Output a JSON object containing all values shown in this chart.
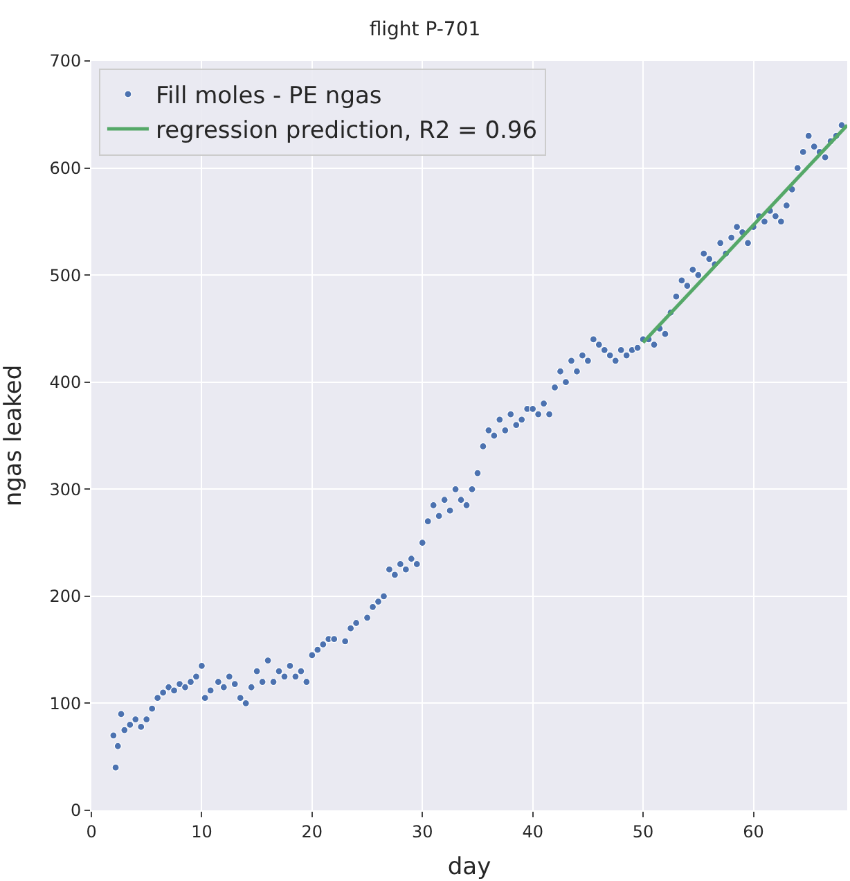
{
  "chart_data": {
    "type": "line",
    "title": "flight P-701",
    "xlabel": "day",
    "ylabel": "ngas leaked",
    "xlim": [
      0,
      68.5
    ],
    "ylim": [
      0,
      700
    ],
    "xticks": [
      0,
      10,
      20,
      30,
      40,
      50,
      60
    ],
    "yticks": [
      0,
      100,
      200,
      300,
      400,
      500,
      600,
      700
    ],
    "grid": true,
    "legend": "top left",
    "series": [
      {
        "name": "Fill moles - PE ngas",
        "type": "scatter",
        "marker": "circle",
        "color": "#4c72b0",
        "x": [
          2,
          2.2,
          2.4,
          2.7,
          3,
          3.5,
          4,
          4.5,
          5,
          5.5,
          6,
          6.5,
          7,
          7.5,
          8,
          8.5,
          9,
          9.5,
          10,
          10.3,
          10.8,
          11.5,
          12,
          12.5,
          13,
          13.5,
          14,
          14.5,
          15,
          15.5,
          16,
          16.5,
          17,
          17.5,
          18,
          18.5,
          19,
          19.5,
          20,
          20.5,
          21,
          21.5,
          22,
          23,
          23.5,
          24,
          25,
          25.5,
          26,
          26.5,
          27,
          27.5,
          28,
          28.5,
          29,
          29.5,
          30,
          30.5,
          31,
          31.5,
          32,
          32.5,
          33,
          33.5,
          34,
          34.5,
          35,
          35.5,
          36,
          36.5,
          37,
          37.5,
          38,
          38.5,
          39,
          39.5,
          40,
          40.5,
          41,
          41.5,
          42,
          42.5,
          43,
          43.5,
          44,
          44.5,
          45,
          45.5,
          46,
          46.5,
          47,
          47.5,
          48,
          48.5,
          49,
          49.5,
          50,
          50.5,
          51,
          51.5,
          52,
          52.5,
          53,
          53.5,
          54,
          54.5,
          55,
          55.5,
          56,
          56.5,
          57,
          57.5,
          58,
          58.5,
          59,
          59.5,
          60,
          60.5,
          61,
          61.5,
          62,
          62.5,
          63,
          63.5,
          64,
          64.5,
          65,
          65.5,
          66,
          66.5,
          67,
          67.5,
          68
        ],
        "values": [
          70,
          40,
          60,
          90,
          75,
          80,
          85,
          78,
          85,
          95,
          105,
          110,
          115,
          112,
          118,
          115,
          120,
          125,
          135,
          105,
          112,
          120,
          115,
          125,
          118,
          105,
          100,
          115,
          130,
          120,
          140,
          120,
          130,
          125,
          135,
          125,
          130,
          120,
          145,
          150,
          155,
          160,
          160,
          158,
          170,
          175,
          180,
          190,
          195,
          200,
          225,
          220,
          230,
          225,
          235,
          230,
          250,
          270,
          285,
          275,
          290,
          280,
          300,
          290,
          285,
          300,
          315,
          340,
          355,
          350,
          365,
          355,
          370,
          360,
          365,
          375,
          375,
          370,
          380,
          370,
          395,
          410,
          400,
          420,
          410,
          425,
          420,
          440,
          435,
          430,
          425,
          420,
          430,
          425,
          430,
          432,
          440,
          440,
          435,
          450,
          445,
          465,
          480,
          495,
          490,
          505,
          500,
          520,
          515,
          510,
          530,
          520,
          535,
          545,
          540,
          530,
          545,
          555,
          550,
          560,
          555,
          550,
          565,
          580,
          600,
          615,
          630,
          620,
          615,
          610,
          625,
          630,
          640
        ]
      },
      {
        "name": "regression prediction, R2 = 0.96",
        "line_style": "solid",
        "color": "#55a868",
        "x": [
          50,
          68.5
        ],
        "values": [
          437,
          640
        ]
      }
    ]
  }
}
